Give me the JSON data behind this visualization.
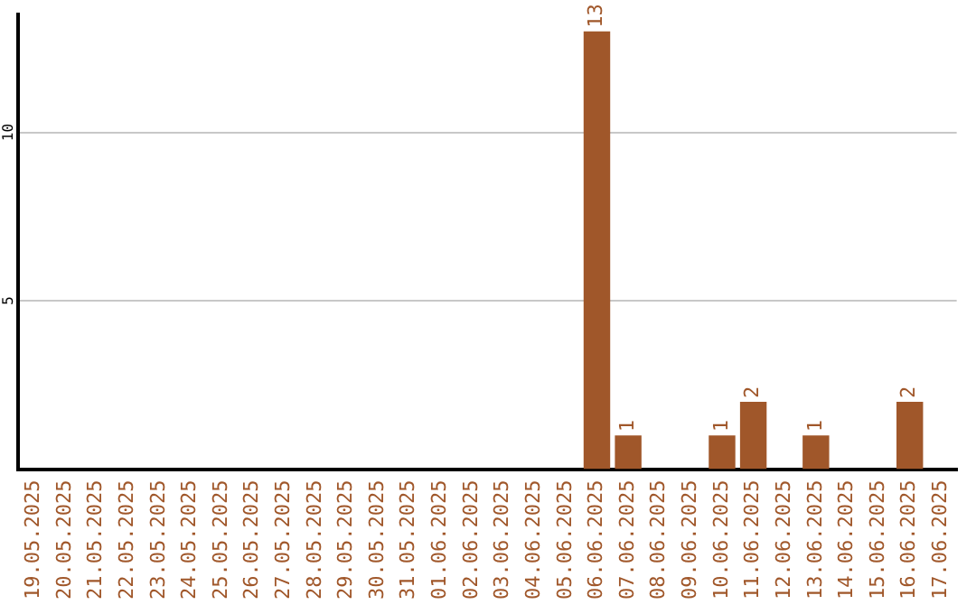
{
  "chart_data": {
    "type": "bar",
    "categories": [
      "19.05.2025",
      "20.05.2025",
      "21.05.2025",
      "22.05.2025",
      "23.05.2025",
      "24.05.2025",
      "25.05.2025",
      "26.05.2025",
      "27.05.2025",
      "28.05.2025",
      "29.05.2025",
      "30.05.2025",
      "31.05.2025",
      "01.06.2025",
      "02.06.2025",
      "03.06.2025",
      "04.06.2025",
      "05.06.2025",
      "06.06.2025",
      "07.06.2025",
      "08.06.2025",
      "09.06.2025",
      "10.06.2025",
      "11.06.2025",
      "12.06.2025",
      "13.06.2025",
      "14.06.2025",
      "15.06.2025",
      "16.06.2025",
      "17.06.2025"
    ],
    "values": [
      0,
      0,
      0,
      0,
      0,
      0,
      0,
      0,
      0,
      0,
      0,
      0,
      0,
      0,
      0,
      0,
      0,
      0,
      13,
      1,
      0,
      0,
      1,
      2,
      0,
      1,
      0,
      0,
      2,
      0
    ],
    "value_labels": [
      null,
      null,
      null,
      null,
      null,
      null,
      null,
      null,
      null,
      null,
      null,
      null,
      null,
      null,
      null,
      null,
      null,
      null,
      "13",
      "1",
      null,
      null,
      "1",
      "2",
      null,
      "1",
      null,
      null,
      "2",
      null
    ],
    "color": "#a0572a",
    "ylim": [
      0,
      13.5
    ],
    "yticks": [
      5,
      10
    ],
    "grid": "y",
    "legend": false
  }
}
